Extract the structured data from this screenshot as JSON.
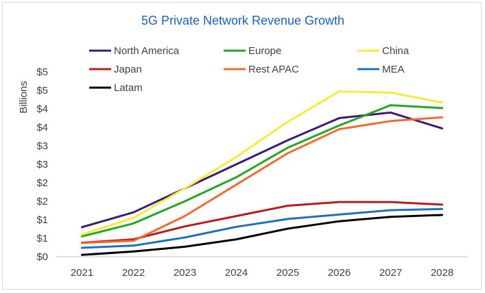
{
  "chart_data": {
    "type": "line",
    "title": "5G Private Network Revenue Growth",
    "xlabel": "",
    "ylabel": "Billions",
    "x": [
      "2021",
      "2022",
      "2023",
      "2024",
      "2025",
      "2026",
      "2027",
      "2028"
    ],
    "ylim": [
      0,
      5
    ],
    "y_ticks": [
      "$0",
      "$1",
      "$1",
      "$2",
      "$2",
      "$3",
      "$3",
      "$4",
      "$4",
      "$5",
      "$5"
    ],
    "y_tick_values": [
      0,
      0.5,
      1,
      1.5,
      2,
      2.5,
      3,
      3.5,
      4,
      4.5,
      5
    ],
    "grid": false,
    "legend_position": "top",
    "series": [
      {
        "name": "North America",
        "color": "#3b1a78",
        "values": [
          0.8,
          1.2,
          1.85,
          2.5,
          3.15,
          3.75,
          3.9,
          3.47
        ]
      },
      {
        "name": "Europe",
        "color": "#22a722",
        "values": [
          0.55,
          0.9,
          1.5,
          2.15,
          2.95,
          3.55,
          4.1,
          4.02
        ]
      },
      {
        "name": "China",
        "color": "#f5ec3a",
        "values": [
          0.6,
          1.05,
          1.85,
          2.7,
          3.65,
          4.47,
          4.44,
          4.17
        ]
      },
      {
        "name": "Japan",
        "color": "#b71c1c",
        "values": [
          0.38,
          0.47,
          0.82,
          1.1,
          1.38,
          1.48,
          1.48,
          1.41
        ]
      },
      {
        "name": "Rest APAC",
        "color": "#f26a2e",
        "values": [
          0.37,
          0.43,
          1.1,
          1.95,
          2.8,
          3.45,
          3.67,
          3.77
        ]
      },
      {
        "name": "MEA",
        "color": "#1f6fbf",
        "values": [
          0.24,
          0.3,
          0.52,
          0.81,
          1.02,
          1.14,
          1.26,
          1.29
        ]
      },
      {
        "name": "Latam",
        "color": "#000000",
        "values": [
          0.05,
          0.14,
          0.27,
          0.47,
          0.76,
          0.96,
          1.08,
          1.13
        ]
      }
    ]
  }
}
